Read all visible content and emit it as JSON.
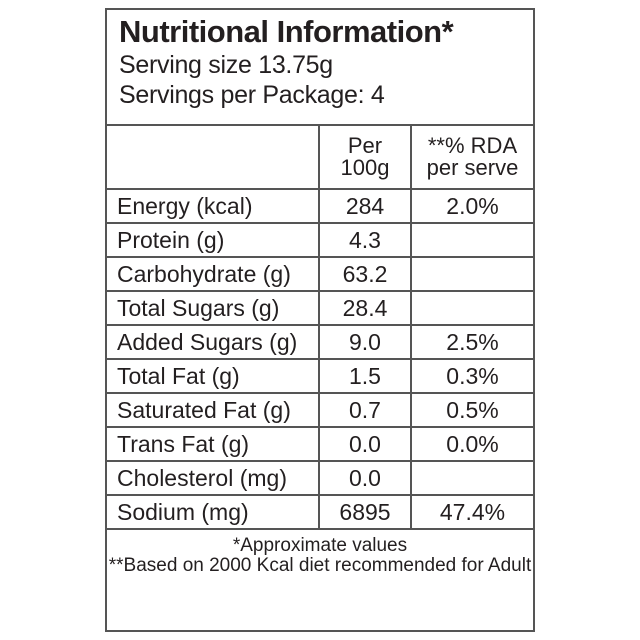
{
  "header": {
    "title": "Nutritional Information*",
    "serving_size": "Serving size 13.75g",
    "servings_per_package": "Servings per Package: 4"
  },
  "table": {
    "columns": [
      "Per 100g",
      "**% RDA per serve"
    ],
    "rows": [
      [
        "Energy (kcal)",
        "284",
        "2.0%"
      ],
      [
        "Protein (g)",
        "4.3",
        null
      ],
      [
        "Carbohydrate (g)",
        "63.2",
        null
      ],
      [
        "Total Sugars (g)",
        "28.4",
        null
      ],
      [
        "Added Sugars (g)",
        "9.0",
        "2.5%"
      ],
      [
        "Total Fat (g)",
        "1.5",
        "0.3%"
      ],
      [
        "Saturated Fat (g)",
        "0.7",
        "0.5%"
      ],
      [
        "Trans Fat (g)",
        "0.0",
        "0.0%"
      ],
      [
        "Cholesterol (mg)",
        "0.0",
        null
      ],
      [
        "Sodium (mg)",
        "6895",
        "47.4%"
      ]
    ]
  },
  "footer": {
    "notes": [
      "*Approximate values",
      "**Based on 2000 Kcal diet recommended for Adult"
    ]
  }
}
